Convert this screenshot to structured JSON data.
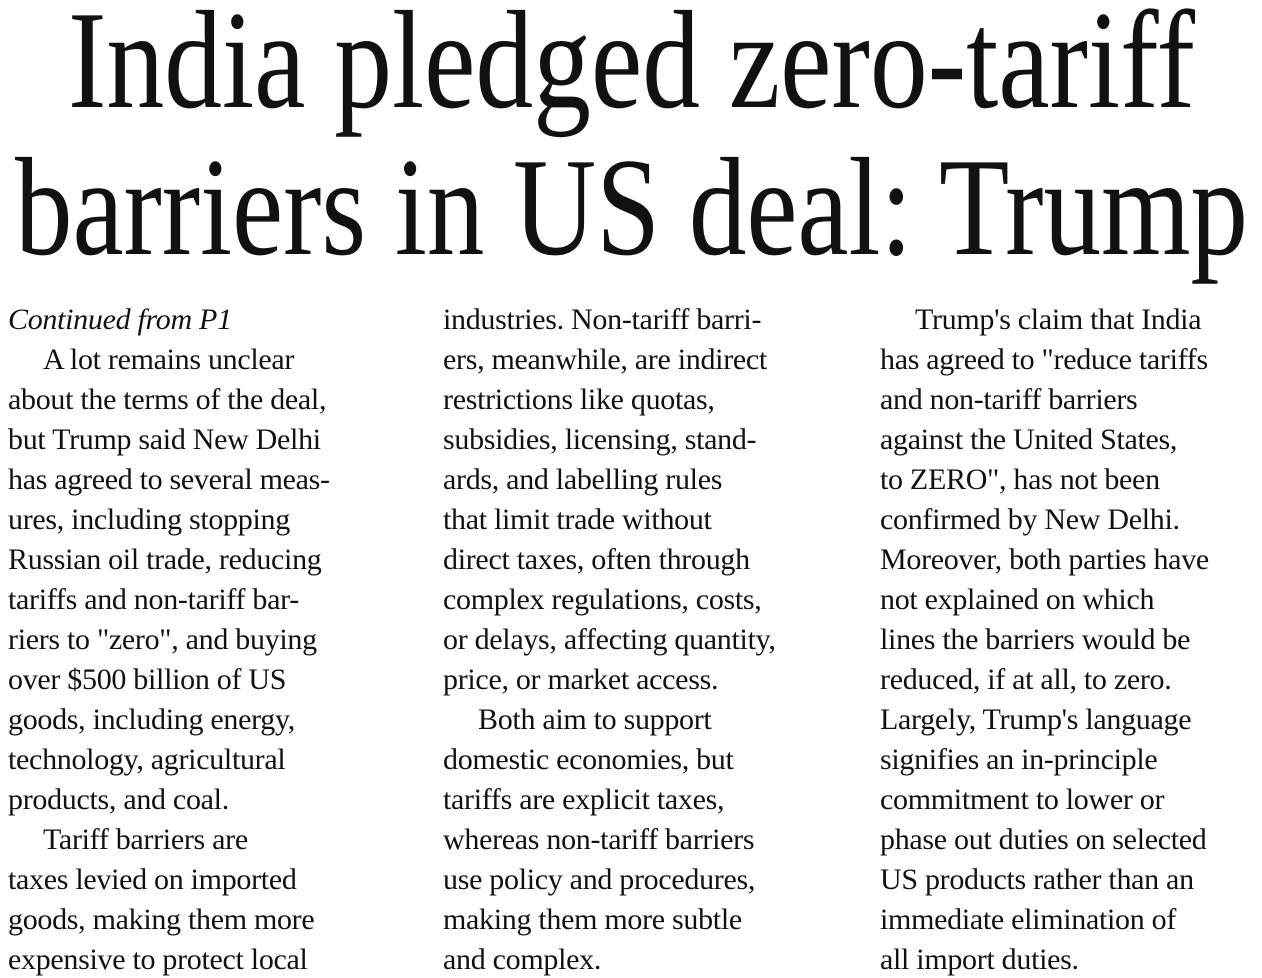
{
  "headline": [
    "India pledged zero-tariff",
    "barriers in US deal: Trump"
  ],
  "columns": [
    {
      "lines": [
        "Continued from P1",
        "A lot remains unclear",
        "about the terms of the deal,",
        "but Trump said New Delhi",
        "has agreed to several meas-",
        "ures, including stopping",
        "Russian oil trade, reducing",
        "tariffs and non-tariff bar-",
        "riers to \"zero\", and buying",
        "over $500 billion of US",
        "goods, including energy,",
        "technology, agricultural",
        "products, and coal.",
        "Tariff barriers are",
        "taxes levied on imported",
        "goods, making them more",
        "expensive to protect local"
      ]
    },
    {
      "lines": [
        "industries. Non-tariff barri-",
        "ers, meanwhile, are indirect",
        "restrictions like quotas,",
        "subsidies, licensing, stand-",
        "ards, and labelling rules",
        "that limit trade without",
        "direct taxes, often through",
        "complex regulations, costs,",
        "or delays, affecting quantity,",
        "price, or market access.",
        "Both aim to support",
        "domestic economies, but",
        "tariffs are explicit taxes,",
        "whereas non-tariff barriers",
        "use policy and procedures,",
        "making them more subtle",
        "and complex."
      ]
    },
    {
      "lines": [
        "Trump's claim that India",
        "has agreed to \"reduce tariffs",
        "and non-tariff barriers",
        "against the United States,",
        "to ZERO\", has not been",
        "confirmed by New Delhi.",
        "Moreover, both parties have",
        "not explained on which",
        "lines the barriers would be",
        "reduced, if at all, to zero.",
        "Largely, Trump's language",
        "signifies an in-principle",
        "commitment to lower or",
        "phase out duties on selected",
        "US products rather than an",
        "immediate elimination of",
        "all import duties."
      ]
    }
  ]
}
